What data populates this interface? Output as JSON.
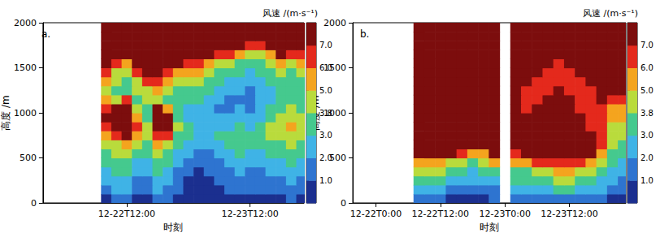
{
  "chart_data": [
    {
      "type": "heatmap",
      "title": "a.",
      "x_label": "时刻",
      "y_label": "高度 /m",
      "xlim": [
        -4.3,
        46.5
      ],
      "xticks": [
        {
          "value": 12,
          "label": "12-22T12:00"
        },
        {
          "value": 36,
          "label": "12-23T12:00"
        }
      ],
      "ylim": [
        0,
        2000
      ],
      "yticks": [
        0,
        500,
        1000,
        1500,
        2000
      ],
      "x": [
        8,
        10,
        12,
        14,
        16,
        18,
        20,
        22,
        24,
        26,
        28,
        30,
        32,
        34,
        36,
        38,
        40,
        42,
        44,
        46
      ],
      "y": [
        50,
        150,
        250,
        350,
        450,
        550,
        650,
        750,
        850,
        950,
        1050,
        1150,
        1250,
        1350,
        1450,
        1550,
        1650,
        1750,
        1850,
        1950
      ],
      "z": [
        [
          0.8,
          1.2,
          1.5,
          0.7,
          0.6,
          1.5,
          1,
          0.6,
          0.4,
          0.3,
          0.4,
          0.5,
          0.6,
          0.8,
          0.6,
          0.6,
          0.8,
          0.8,
          1,
          0.8
        ],
        [
          1.5,
          2,
          2,
          1,
          1,
          2,
          1.5,
          1,
          0.6,
          0.5,
          0.6,
          0.8,
          1,
          1.2,
          1,
          1,
          1.2,
          1.2,
          1.5,
          1.2
        ],
        [
          2,
          2.5,
          2.5,
          1.5,
          1.5,
          2.5,
          2,
          1.2,
          0.8,
          0.6,
          0.8,
          1,
          1.2,
          1.5,
          1.2,
          1.2,
          1.5,
          1.5,
          2,
          1.5
        ],
        [
          2.5,
          3,
          3,
          2,
          2,
          3,
          2.5,
          1.5,
          1,
          0.8,
          1,
          1.2,
          1.5,
          2,
          1.5,
          1.5,
          2,
          2,
          2.5,
          2
        ],
        [
          3,
          3.5,
          3.5,
          2.5,
          2.5,
          3.5,
          3,
          2,
          1.5,
          1,
          1.2,
          1.5,
          2,
          2.5,
          2,
          2,
          2.5,
          2.5,
          3,
          2.5
        ],
        [
          3.5,
          4,
          4,
          3,
          3,
          4,
          3.5,
          2.5,
          2,
          1.5,
          1.5,
          2,
          2.5,
          3,
          2.5,
          2.5,
          3,
          3,
          3.5,
          3
        ],
        [
          4,
          4.5,
          5,
          4,
          3.5,
          5,
          4.5,
          3,
          2.5,
          2,
          2,
          2.5,
          3,
          3.5,
          3,
          3,
          3.5,
          3.5,
          4,
          3.5
        ],
        [
          5,
          6,
          7,
          5,
          4,
          6.5,
          6,
          3.5,
          3,
          2.5,
          2.5,
          3,
          3,
          3.5,
          3,
          3.5,
          4.5,
          4,
          4.5,
          4
        ],
        [
          6,
          7.5,
          8,
          6,
          4,
          8,
          7.5,
          4,
          3,
          2.5,
          2.5,
          2.5,
          2.5,
          3,
          2.5,
          3,
          4,
          4.5,
          5,
          4.5
        ],
        [
          7,
          8,
          8,
          5,
          3.5,
          8,
          7,
          3.5,
          2.5,
          2,
          2,
          2,
          2,
          2.5,
          2,
          2.5,
          3.5,
          4,
          4.5,
          4
        ],
        [
          6,
          7.5,
          8,
          4,
          3.5,
          7,
          5,
          3,
          2.5,
          2.5,
          2,
          1.5,
          1.5,
          2,
          1.5,
          2,
          3,
          3.5,
          4,
          3.5
        ],
        [
          5,
          4,
          6,
          3.5,
          4,
          4.5,
          3.5,
          3,
          3,
          3,
          2.5,
          2,
          1.5,
          1.8,
          1.5,
          2,
          2.5,
          3,
          3.5,
          3
        ],
        [
          4.5,
          3.5,
          3,
          4,
          4.5,
          5,
          4,
          3.5,
          3.5,
          3.5,
          3,
          2.5,
          2,
          2,
          1.5,
          2,
          2.5,
          3,
          3,
          3
        ],
        [
          5,
          4,
          3.5,
          4.5,
          6,
          6,
          5,
          4,
          4.5,
          4,
          3.5,
          3,
          2.5,
          2.5,
          2,
          2.5,
          3,
          3.5,
          3,
          3.5
        ],
        [
          6,
          4.5,
          4,
          6,
          8,
          8,
          6.5,
          5,
          5.5,
          5,
          4,
          3.5,
          3,
          3,
          2.5,
          3,
          3.5,
          4,
          3.5,
          4
        ],
        [
          8,
          6,
          5,
          8,
          9,
          9,
          8,
          7,
          6.5,
          6,
          5,
          4,
          4,
          3.5,
          3,
          3.5,
          4,
          5,
          4.5,
          5
        ],
        [
          9,
          9,
          8,
          9,
          9,
          9,
          9,
          9,
          9,
          8,
          7.5,
          6.5,
          6,
          5,
          4,
          4.5,
          5.5,
          7,
          6.5,
          6
        ],
        [
          9,
          9,
          9,
          9,
          9,
          9,
          9,
          9,
          9,
          9,
          9,
          9,
          9,
          8,
          6.5,
          6,
          7.5,
          9,
          9,
          8
        ],
        [
          9,
          9,
          9,
          9,
          9,
          9,
          9,
          9,
          9,
          9,
          9,
          9,
          9,
          9,
          9,
          8,
          9,
          9,
          9,
          9
        ],
        [
          9,
          9,
          9,
          9,
          9,
          9,
          9,
          9,
          9,
          9,
          9,
          9,
          9,
          9,
          9,
          9,
          9,
          9,
          9,
          9
        ]
      ],
      "colorbar": {
        "label": "风速 /(m·s⁻¹)",
        "bounds": [
          0,
          1,
          2,
          3,
          3.8,
          5,
          6,
          7,
          10
        ],
        "colors": [
          "#1b2f8f",
          "#2e74d0",
          "#3fb3e6",
          "#45c98e",
          "#b9db3c",
          "#f4a41e",
          "#e4291c",
          "#7c0d0d"
        ],
        "ticks": [
          {
            "value": 1,
            "label": "1.0"
          },
          {
            "value": 2,
            "label": "2.0"
          },
          {
            "value": 3,
            "label": "3.0"
          },
          3.8,
          {
            "value": 5,
            "label": "5.0"
          },
          {
            "value": 6,
            "label": "6.0"
          },
          {
            "value": 7,
            "label": "7.0"
          }
        ]
      }
    },
    {
      "type": "heatmap",
      "title": "b.",
      "x_label": "时刻",
      "y_label": "高度 /m",
      "xlim": [
        -4.3,
        46.5
      ],
      "xticks": [
        {
          "value": 0,
          "label": "12-22T0:00"
        },
        {
          "value": 12,
          "label": "12-22T12:00"
        },
        {
          "value": 24,
          "label": "12-23T0:00"
        },
        {
          "value": 36,
          "label": "12-23T12:00"
        }
      ],
      "ylim": [
        0,
        2000
      ],
      "yticks": [
        0,
        500,
        1000,
        1500,
        2000
      ],
      "x": [
        8,
        10,
        12,
        14,
        16,
        18,
        20,
        22,
        24,
        26,
        28,
        30,
        32,
        34,
        36,
        38,
        40,
        42,
        44,
        46
      ],
      "y": [
        50,
        150,
        250,
        350,
        450,
        550,
        650,
        750,
        850,
        950,
        1050,
        1150,
        1250,
        1350,
        1450,
        1550,
        1650,
        1750,
        1850,
        1950
      ],
      "z": [
        [
          1,
          1,
          1,
          0.8,
          0.6,
          0.6,
          0.8,
          1,
          null,
          1,
          1,
          1.2,
          1.2,
          1.5,
          1.5,
          1.2,
          1,
          1,
          0.8,
          0.6
        ],
        [
          2,
          2,
          2,
          1.5,
          1.2,
          1.2,
          1.5,
          1.8,
          null,
          2,
          2,
          2.5,
          2.5,
          3,
          3,
          2.5,
          2,
          2,
          1.5,
          1.2
        ],
        [
          3,
          3,
          3,
          2.5,
          2,
          2,
          2,
          2.5,
          null,
          3,
          3,
          3.5,
          3.5,
          4,
          4,
          3.5,
          3,
          2.5,
          2,
          1.5
        ],
        [
          4,
          4,
          4,
          3.5,
          3,
          2.5,
          3,
          3.5,
          null,
          3.5,
          3.5,
          4.5,
          4.5,
          5,
          5,
          4.5,
          4,
          3.5,
          2.5,
          2
        ],
        [
          5.5,
          5,
          5.5,
          4.5,
          4,
          3.5,
          4,
          5,
          null,
          5,
          5,
          6,
          6,
          6.5,
          6.5,
          6,
          5.5,
          4.5,
          3,
          2.5
        ],
        [
          8,
          7.5,
          8,
          7,
          6.5,
          5,
          5.5,
          7.5,
          null,
          6.5,
          7,
          8,
          8,
          8,
          8.5,
          8,
          7,
          5.5,
          3.5,
          3
        ],
        [
          9,
          9,
          9,
          9,
          9,
          9,
          8,
          9,
          null,
          8,
          8.5,
          9,
          9,
          9,
          9,
          9,
          8,
          6.5,
          4,
          3.5
        ],
        [
          9,
          9,
          9,
          9,
          9,
          9,
          9,
          9,
          null,
          9,
          9,
          9,
          9,
          9,
          9,
          8,
          7,
          6,
          4,
          4
        ],
        [
          9,
          9,
          9,
          9,
          9,
          9,
          9,
          9,
          null,
          9,
          9,
          9,
          9,
          9,
          8.5,
          7.5,
          6.5,
          6,
          4.5,
          4.5
        ],
        [
          9,
          9,
          9,
          9,
          9,
          9,
          9,
          9,
          null,
          8.5,
          8,
          8,
          8.5,
          8.5,
          8,
          7,
          6,
          6,
          5,
          5
        ],
        [
          9,
          9,
          9,
          9,
          9,
          9,
          9,
          9,
          null,
          8,
          6.5,
          7.5,
          8,
          8,
          7.5,
          6.5,
          6,
          6.5,
          5.5,
          5.5
        ],
        [
          9,
          9,
          9,
          9,
          9,
          9,
          9,
          9,
          null,
          7.5,
          6,
          6.5,
          7.5,
          8,
          7,
          6,
          6,
          7,
          6,
          6.5
        ],
        [
          9,
          9,
          9,
          9,
          9,
          9,
          9,
          9,
          null,
          8,
          6.5,
          6,
          6.5,
          7.5,
          6.5,
          6,
          6.5,
          8,
          7,
          8
        ],
        [
          9,
          9,
          9,
          9,
          9,
          9,
          9,
          9,
          null,
          9,
          8,
          6.5,
          6,
          6.5,
          6,
          6.5,
          8,
          9,
          8,
          9
        ],
        [
          9,
          9,
          9,
          9,
          9,
          9,
          9,
          9,
          null,
          9,
          9,
          8,
          6.5,
          6,
          6.5,
          8,
          9,
          9,
          9,
          9
        ],
        [
          9,
          9,
          9,
          9,
          9,
          9,
          9,
          9,
          null,
          9,
          9,
          9,
          8,
          6.5,
          8,
          9,
          9,
          9,
          9,
          9
        ],
        [
          9,
          9,
          9,
          9,
          9,
          9,
          9,
          9,
          null,
          9,
          9,
          9,
          9,
          8,
          9,
          9,
          9,
          9,
          9,
          9
        ],
        [
          9,
          9,
          9,
          9,
          9,
          9,
          9,
          9,
          null,
          9,
          9,
          9,
          9,
          9,
          9,
          9,
          9,
          9,
          9,
          9
        ],
        [
          9,
          9,
          9,
          9,
          9,
          9,
          9,
          9,
          null,
          9,
          9,
          9,
          9,
          9,
          9,
          9,
          9,
          9,
          9,
          9
        ],
        [
          9,
          9,
          9,
          9,
          9,
          9,
          9,
          9,
          null,
          9,
          9,
          9,
          9,
          9,
          9,
          9,
          9,
          9,
          9,
          9
        ]
      ],
      "colorbar": {
        "label": "风速 /(m·s⁻¹)",
        "bounds": [
          0,
          1,
          2,
          3,
          3.8,
          5,
          6,
          7,
          10
        ],
        "colors": [
          "#1b2f8f",
          "#2e74d0",
          "#3fb3e6",
          "#45c98e",
          "#b9db3c",
          "#f4a41e",
          "#e4291c",
          "#7c0d0d"
        ],
        "ticks": [
          {
            "value": 1,
            "label": "1.0"
          },
          {
            "value": 2,
            "label": "2.0"
          },
          {
            "value": 3,
            "label": "3.0"
          },
          3.8,
          {
            "value": 5,
            "label": "5.0"
          },
          {
            "value": 6,
            "label": "6.0"
          },
          {
            "value": 7,
            "label": "7.0"
          }
        ]
      }
    }
  ]
}
